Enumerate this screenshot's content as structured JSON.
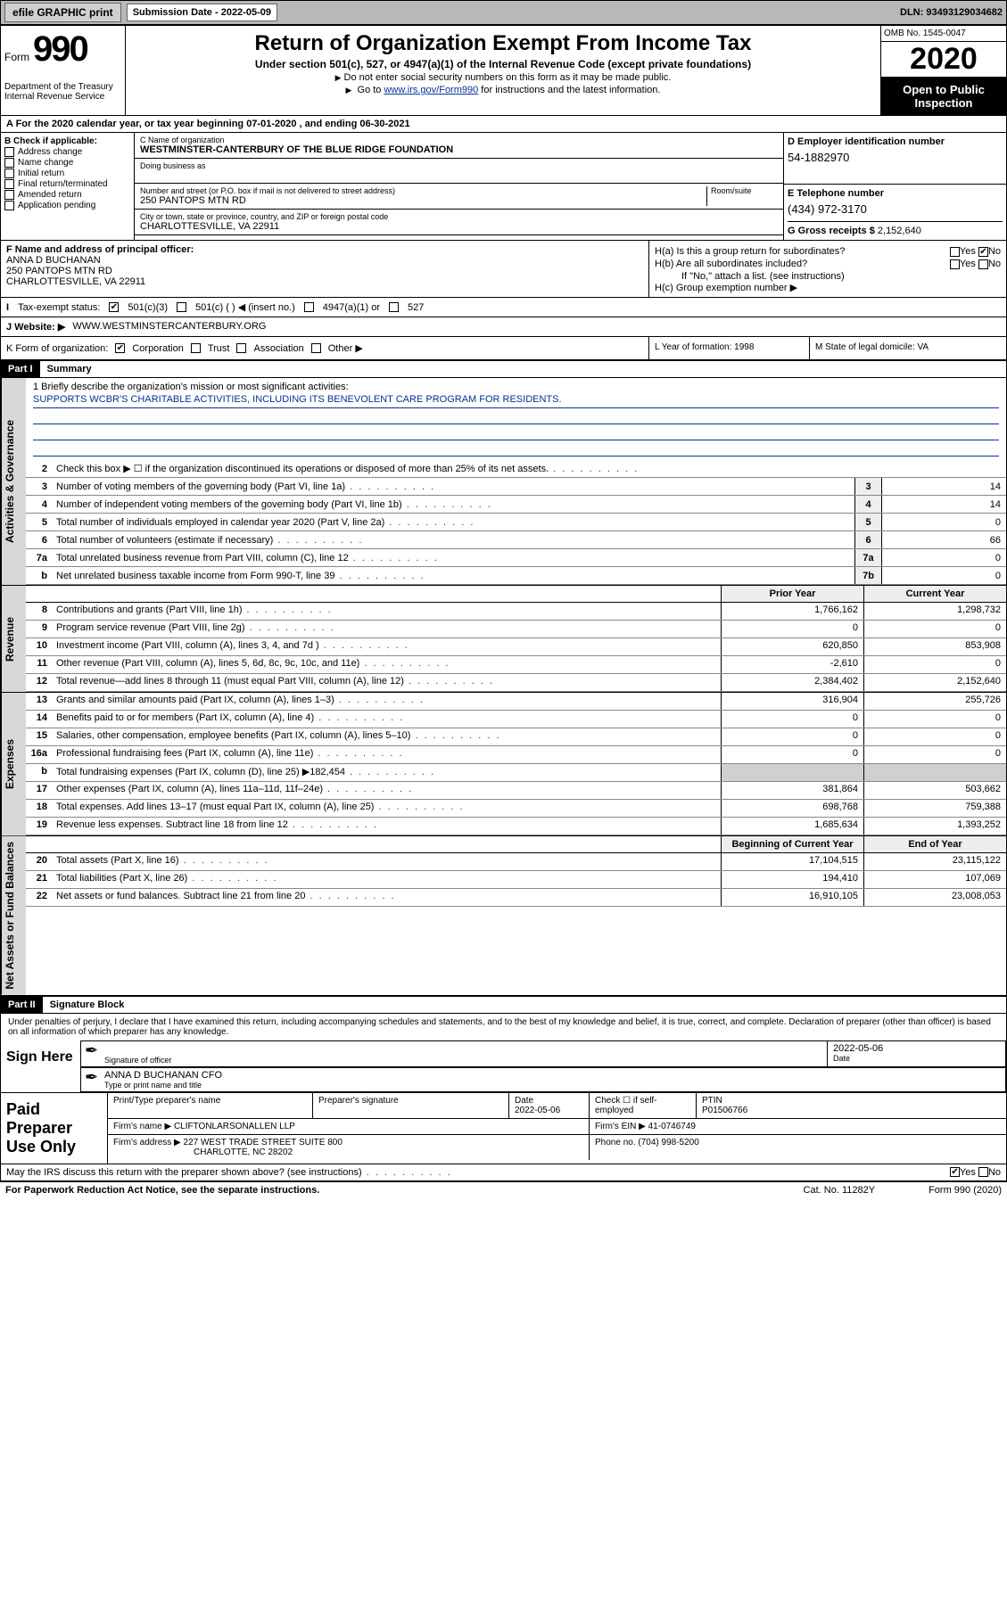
{
  "topbar": {
    "efile": "efile GRAPHIC print",
    "sub_label": "Submission Date - 2022-05-09",
    "dln": "DLN: 93493129034682"
  },
  "header": {
    "form_word": "Form",
    "form_num": "990",
    "dept": "Department of the Treasury\nInternal Revenue Service",
    "title": "Return of Organization Exempt From Income Tax",
    "subtitle": "Under section 501(c), 527, or 4947(a)(1) of the Internal Revenue Code (except private foundations)",
    "note1": "Do not enter social security numbers on this form as it may be made public.",
    "note2_pre": "Go to ",
    "note2_link": "www.irs.gov/Form990",
    "note2_post": " for instructions and the latest information.",
    "omb": "OMB No. 1545-0047",
    "year": "2020",
    "open": "Open to Public Inspection"
  },
  "row_a": "A For the 2020 calendar year, or tax year beginning 07-01-2020    , and ending 06-30-2021",
  "col_b": {
    "hdr": "B Check if applicable:",
    "items": [
      "Address change",
      "Name change",
      "Initial return",
      "Final return/terminated",
      "Amended return",
      "Application pending"
    ]
  },
  "col_c": {
    "name_lab": "C Name of organization",
    "name": "WESTMINSTER-CANTERBURY OF THE BLUE RIDGE FOUNDATION",
    "dba_lab": "Doing business as",
    "street_lab": "Number and street (or P.O. box if mail is not delivered to street address)",
    "room_lab": "Room/suite",
    "street": "250 PANTOPS MTN RD",
    "city_lab": "City or town, state or province, country, and ZIP or foreign postal code",
    "city": "CHARLOTTESVILLE, VA  22911"
  },
  "col_d": {
    "lab": "D Employer identification number",
    "val": "54-1882970"
  },
  "col_e": {
    "lab": "E Telephone number",
    "val": "(434) 972-3170"
  },
  "col_g": {
    "lab": "G Gross receipts $",
    "val": "2,152,640"
  },
  "col_f": {
    "lab": "F  Name and address of principal officer:",
    "name": "ANNA D BUCHANAN",
    "addr1": "250 PANTOPS MTN RD",
    "addr2": "CHARLOTTESVILLE, VA  22911"
  },
  "col_h": {
    "a": "H(a)  Is this a group return for subordinates?",
    "a_yes": "Yes",
    "a_no": "No",
    "b": "H(b)  Are all subordinates included?",
    "b_yes": "Yes",
    "b_no": "No",
    "b_note": "If \"No,\" attach a list. (see instructions)",
    "c": "H(c)  Group exemption number ▶"
  },
  "tax": {
    "lab": "Tax-exempt status:",
    "o1": "501(c)(3)",
    "o2": "501(c) (   ) ◀ (insert no.)",
    "o3": "4947(a)(1) or",
    "o4": "527"
  },
  "web": {
    "lab": "J    Website: ▶",
    "val": "WWW.WESTMINSTERCANTERBURY.ORG"
  },
  "klm": {
    "k_lab": "K Form of organization:",
    "k_opts": [
      "Corporation",
      "Trust",
      "Association",
      "Other ▶"
    ],
    "l_lab": "L Year of formation:",
    "l_val": "1998",
    "m_lab": "M State of legal domicile:",
    "m_val": "VA"
  },
  "part1": {
    "hdr": "Part I",
    "title": "Summary"
  },
  "mission": {
    "q": "1   Briefly describe the organization's mission or most significant activities:",
    "a": "SUPPORTS WCBR'S CHARITABLE ACTIVITIES, INCLUDING ITS BENEVOLENT CARE PROGRAM FOR RESIDENTS."
  },
  "gov_lines": [
    {
      "n": "2",
      "t": "Check this box ▶ ☐  if the organization discontinued its operations or disposed of more than 25% of its net assets.",
      "box": "",
      "v": ""
    },
    {
      "n": "3",
      "t": "Number of voting members of the governing body (Part VI, line 1a)",
      "box": "3",
      "v": "14"
    },
    {
      "n": "4",
      "t": "Number of independent voting members of the governing body (Part VI, line 1b)",
      "box": "4",
      "v": "14"
    },
    {
      "n": "5",
      "t": "Total number of individuals employed in calendar year 2020 (Part V, line 2a)",
      "box": "5",
      "v": "0"
    },
    {
      "n": "6",
      "t": "Total number of volunteers (estimate if necessary)",
      "box": "6",
      "v": "66"
    },
    {
      "n": "7a",
      "t": "Total unrelated business revenue from Part VIII, column (C), line 12",
      "box": "7a",
      "v": "0"
    },
    {
      "n": "b",
      "t": "Net unrelated business taxable income from Form 990-T, line 39",
      "box": "7b",
      "v": "0"
    }
  ],
  "rev_hdr": {
    "c1": "Prior Year",
    "c2": "Current Year"
  },
  "rev_lines": [
    {
      "n": "8",
      "t": "Contributions and grants (Part VIII, line 1h)",
      "c1": "1,766,162",
      "c2": "1,298,732"
    },
    {
      "n": "9",
      "t": "Program service revenue (Part VIII, line 2g)",
      "c1": "0",
      "c2": "0"
    },
    {
      "n": "10",
      "t": "Investment income (Part VIII, column (A), lines 3, 4, and 7d )",
      "c1": "620,850",
      "c2": "853,908"
    },
    {
      "n": "11",
      "t": "Other revenue (Part VIII, column (A), lines 5, 6d, 8c, 9c, 10c, and 11e)",
      "c1": "-2,610",
      "c2": "0"
    },
    {
      "n": "12",
      "t": "Total revenue—add lines 8 through 11 (must equal Part VIII, column (A), line 12)",
      "c1": "2,384,402",
      "c2": "2,152,640"
    }
  ],
  "exp_lines": [
    {
      "n": "13",
      "t": "Grants and similar amounts paid (Part IX, column (A), lines 1–3)",
      "c1": "316,904",
      "c2": "255,726"
    },
    {
      "n": "14",
      "t": "Benefits paid to or for members (Part IX, column (A), line 4)",
      "c1": "0",
      "c2": "0"
    },
    {
      "n": "15",
      "t": "Salaries, other compensation, employee benefits (Part IX, column (A), lines 5–10)",
      "c1": "0",
      "c2": "0"
    },
    {
      "n": "16a",
      "t": "Professional fundraising fees (Part IX, column (A), line 11e)",
      "c1": "0",
      "c2": "0"
    },
    {
      "n": "b",
      "t": "Total fundraising expenses (Part IX, column (D), line 25) ▶182,454",
      "c1": "",
      "c2": "",
      "shade": true
    },
    {
      "n": "17",
      "t": "Other expenses (Part IX, column (A), lines 11a–11d, 11f–24e)",
      "c1": "381,864",
      "c2": "503,662"
    },
    {
      "n": "18",
      "t": "Total expenses. Add lines 13–17 (must equal Part IX, column (A), line 25)",
      "c1": "698,768",
      "c2": "759,388"
    },
    {
      "n": "19",
      "t": "Revenue less expenses. Subtract line 18 from line 12",
      "c1": "1,685,634",
      "c2": "1,393,252"
    }
  ],
  "na_hdr": {
    "c1": "Beginning of Current Year",
    "c2": "End of Year"
  },
  "na_lines": [
    {
      "n": "20",
      "t": "Total assets (Part X, line 16)",
      "c1": "17,104,515",
      "c2": "23,115,122"
    },
    {
      "n": "21",
      "t": "Total liabilities (Part X, line 26)",
      "c1": "194,410",
      "c2": "107,069"
    },
    {
      "n": "22",
      "t": "Net assets or fund balances. Subtract line 21 from line 20",
      "c1": "16,910,105",
      "c2": "23,008,053"
    }
  ],
  "vtabs": {
    "gov": "Activities & Governance",
    "rev": "Revenue",
    "exp": "Expenses",
    "na": "Net Assets or Fund Balances"
  },
  "part2": {
    "hdr": "Part II",
    "title": "Signature Block"
  },
  "sig": {
    "intro": "Under penalties of perjury, I declare that I have examined this return, including accompanying schedules and statements, and to the best of my knowledge and belief, it is true, correct, and complete. Declaration of preparer (other than officer) is based on all information of which preparer has any knowledge.",
    "here": "Sign Here",
    "off_sig": "Signature of officer",
    "date": "2022-05-06",
    "date_lab": "Date",
    "name": "ANNA D BUCHANAN  CFO",
    "name_lab": "Type or print name and title"
  },
  "prep": {
    "label": "Paid Preparer Use Only",
    "h1": "Print/Type preparer's name",
    "h2": "Preparer's signature",
    "h3": "Date",
    "h3v": "2022-05-06",
    "h4": "Check ☐ if self-employed",
    "h5": "PTIN",
    "h5v": "P01506766",
    "firm_lab": "Firm's name    ▶",
    "firm": "CLIFTONLARSONALLEN LLP",
    "ein_lab": "Firm's EIN ▶",
    "ein": "41-0746749",
    "addr_lab": "Firm's address ▶",
    "addr1": "227 WEST TRADE STREET SUITE 800",
    "addr2": "CHARLOTTE, NC  28202",
    "phone_lab": "Phone no.",
    "phone": "(704) 998-5200"
  },
  "discuss": {
    "q": "May the IRS discuss this return with the preparer shown above? (see instructions)",
    "yes": "Yes",
    "no": "No"
  },
  "footer": {
    "l": "For Paperwork Reduction Act Notice, see the separate instructions.",
    "m": "Cat. No. 11282Y",
    "r": "Form 990 (2020)"
  }
}
